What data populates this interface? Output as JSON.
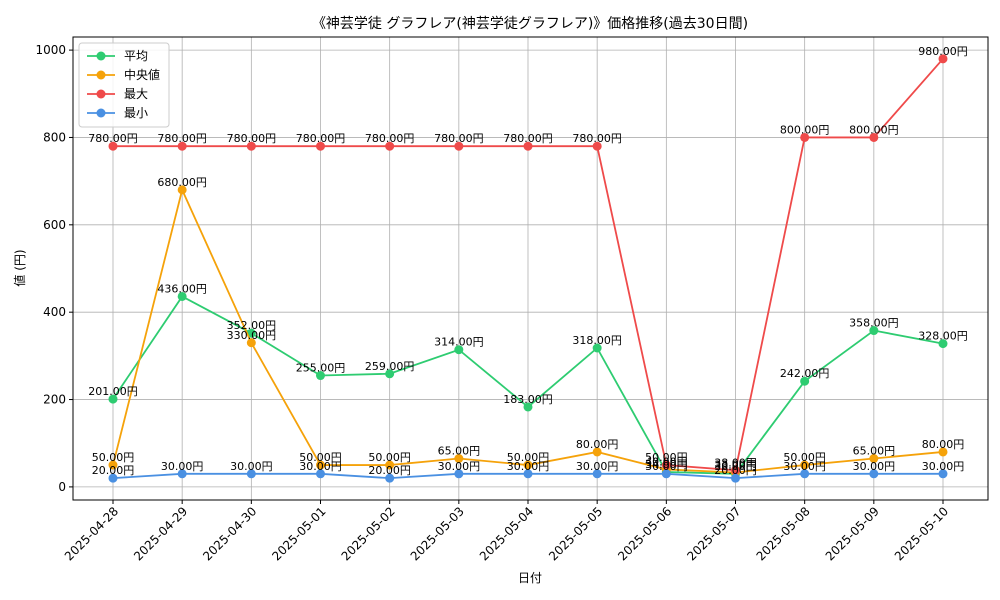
{
  "chart_data": {
    "type": "line",
    "title": "《神芸学徒 グラフレア(神芸学徒グラフレア)》価格推移(過去30日間)",
    "xlabel": "日付",
    "ylabel": "値 (円)",
    "ylim": [
      -30,
      1030
    ],
    "yticks": [
      0,
      200,
      400,
      600,
      800,
      1000
    ],
    "grid": true,
    "legend_position": "top-left",
    "categories": [
      "2025-04-28",
      "2025-04-29",
      "2025-04-30",
      "2025-05-01",
      "2025-05-02",
      "2025-05-03",
      "2025-05-04",
      "2025-05-05",
      "2025-05-06",
      "2025-05-07",
      "2025-05-08",
      "2025-05-09",
      "2025-05-10"
    ],
    "series": [
      {
        "name": "平均",
        "color": "#2ecc71",
        "values": [
          201,
          436,
          352,
          255,
          259,
          314,
          183,
          318,
          34,
          30,
          242,
          358,
          328
        ],
        "labels": [
          "201.00円",
          "436.00円",
          "352.00円",
          "255.00円",
          "259.00円",
          "314.00円",
          "183.00円",
          "318.00円",
          "34.00円",
          "30.00円",
          "242.00円",
          "358.00円",
          "328.00円"
        ]
      },
      {
        "name": "中央値",
        "color": "#f5a20a",
        "values": [
          50,
          680,
          330,
          50,
          50,
          65,
          50,
          80,
          40,
          33,
          50,
          65,
          80
        ],
        "labels": [
          "50.00円",
          "680.00円",
          "330.00円",
          "50.00円",
          "50.00円",
          "65.00円",
          "50.00円",
          "80.00円",
          "40.00円",
          "33.00円",
          "50.00円",
          "65.00円",
          "80.00円"
        ]
      },
      {
        "name": "最大",
        "color": "#ef4a4a",
        "values": [
          780,
          780,
          780,
          780,
          780,
          780,
          780,
          780,
          50,
          38,
          800,
          800,
          980
        ],
        "labels": [
          "780.00円",
          "780.00円",
          "780.00円",
          "780.00円",
          "780.00円",
          "780.00円",
          "780.00円",
          "780.00円",
          "50.00円",
          "38.00円",
          "800.00円",
          "800.00円",
          "980.00円"
        ]
      },
      {
        "name": "最小",
        "color": "#4a90e2",
        "values": [
          20,
          30,
          30,
          30,
          20,
          30,
          30,
          30,
          30,
          20,
          30,
          30,
          30
        ],
        "labels": [
          "20.00円",
          "30.00円",
          "30.00円",
          "30.00円",
          "20.00円",
          "30.00円",
          "30.00円",
          "30.00円",
          "30.00円",
          "20.00円",
          "30.00円",
          "30.00円",
          "30.00円"
        ]
      }
    ]
  }
}
